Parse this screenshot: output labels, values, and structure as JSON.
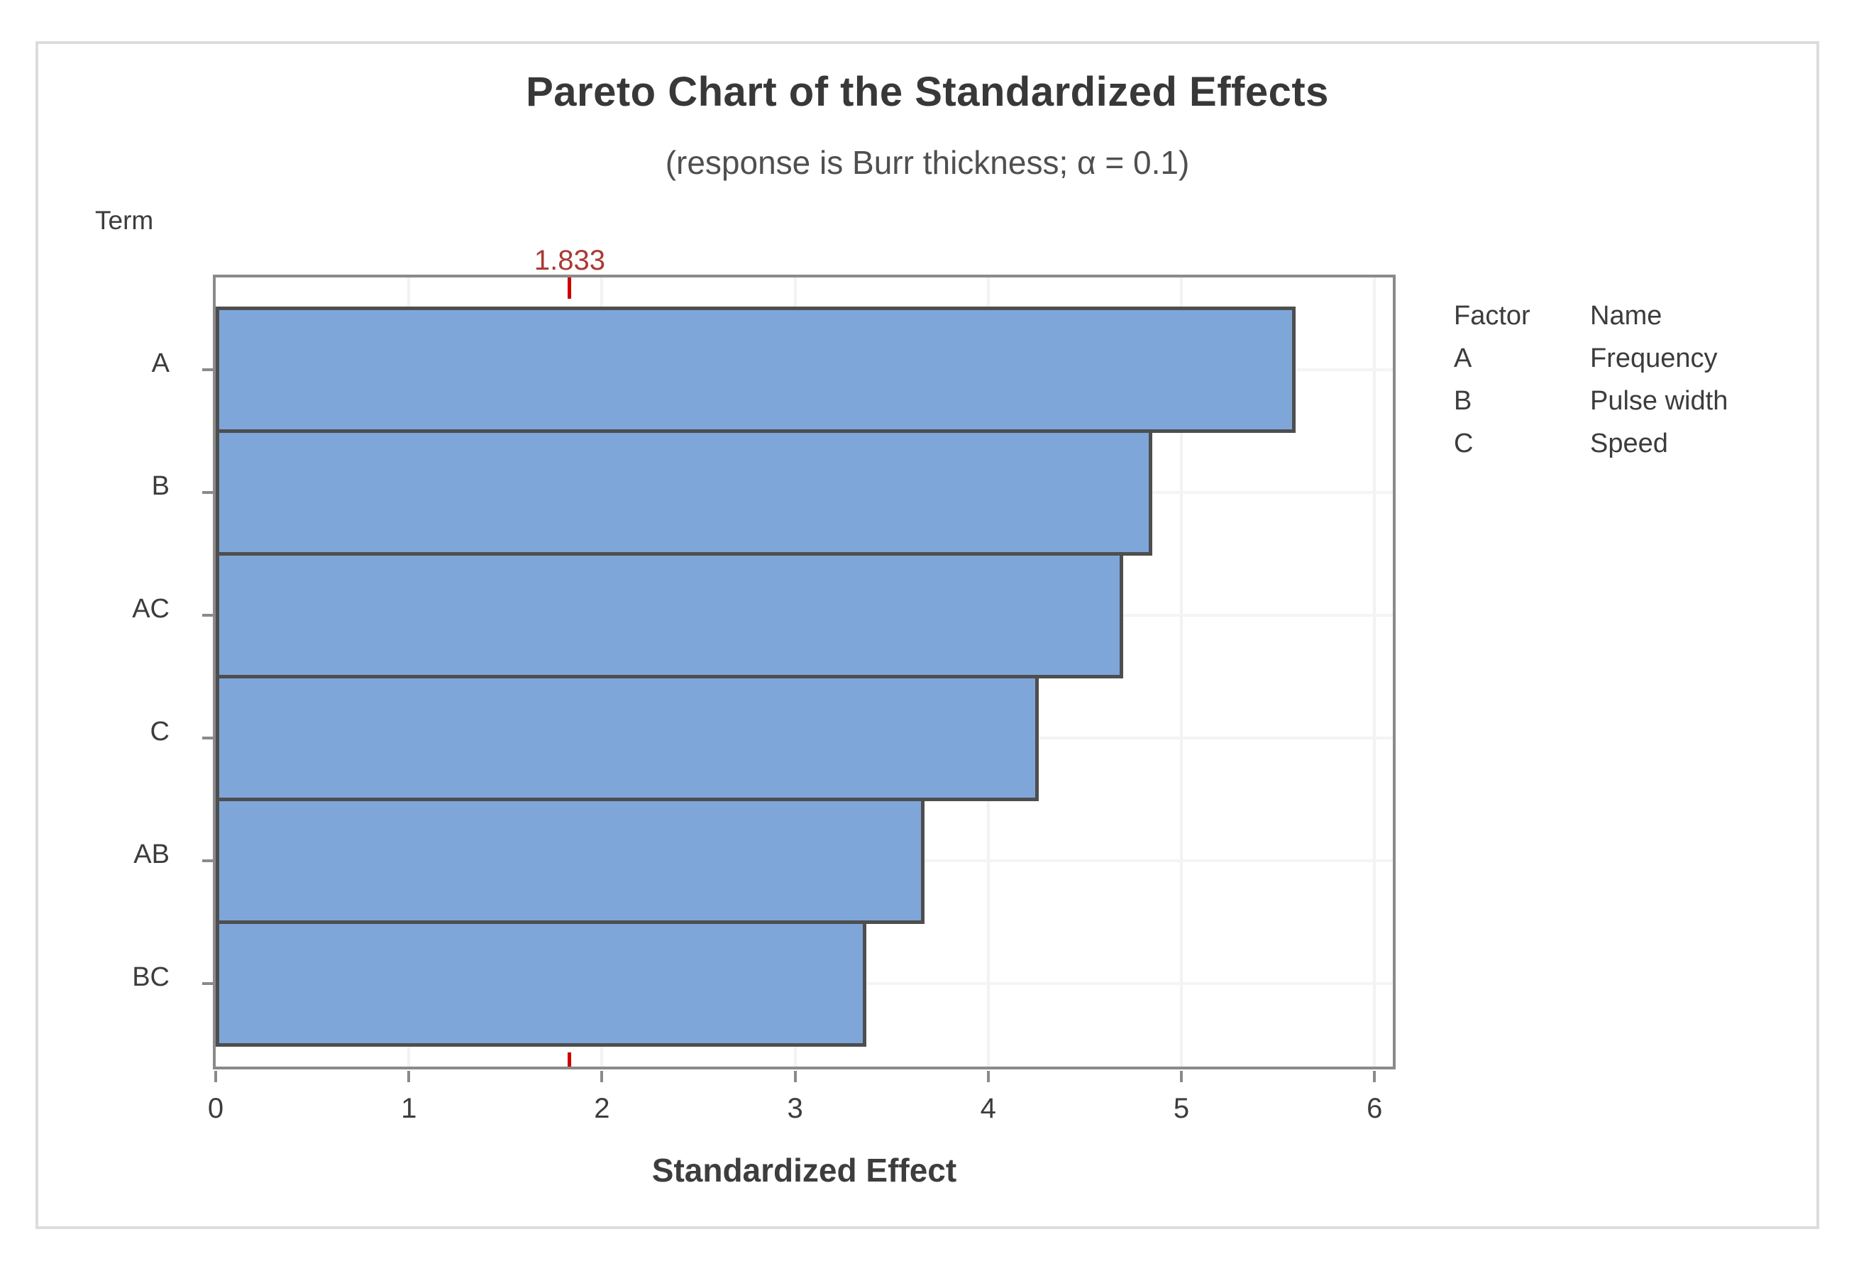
{
  "chart_data": {
    "type": "bar",
    "orientation": "horizontal",
    "title": "Pareto Chart of the Standardized Effects",
    "subtitle": "(response is Burr thickness; α = 0.1)",
    "xlabel": "Standardized Effect",
    "ylabel": "Term",
    "categories": [
      "A",
      "B",
      "AC",
      "C",
      "AB",
      "BC"
    ],
    "values": [
      5.59,
      4.85,
      4.7,
      4.26,
      3.67,
      3.37
    ],
    "x_ticks": [
      0,
      1,
      2,
      3,
      4,
      5,
      6
    ],
    "xlim": [
      0,
      6.13
    ],
    "grid": "faint gridlines at integer x values and at bar row centers",
    "reference_line": {
      "value": 1.833,
      "label": "1.833",
      "style": "dashed"
    },
    "legend": {
      "position": "right",
      "header": {
        "factor": "Factor",
        "name": "Name"
      },
      "rows": [
        {
          "factor": "A",
          "name": "Frequency"
        },
        {
          "factor": "B",
          "name": "Pulse width"
        },
        {
          "factor": "C",
          "name": "Speed"
        }
      ]
    },
    "colors": {
      "bar_fill": "#7EA6D9",
      "bar_border": "#4E4E4E",
      "axis": "#8A8A8A",
      "gridline": "#F2F2F2",
      "reference_line": "#CC0000",
      "reference_label": "#A83A32",
      "title_text": "#383838",
      "text": "#3C3C3C",
      "panel_border": "#DCDCDC"
    }
  }
}
